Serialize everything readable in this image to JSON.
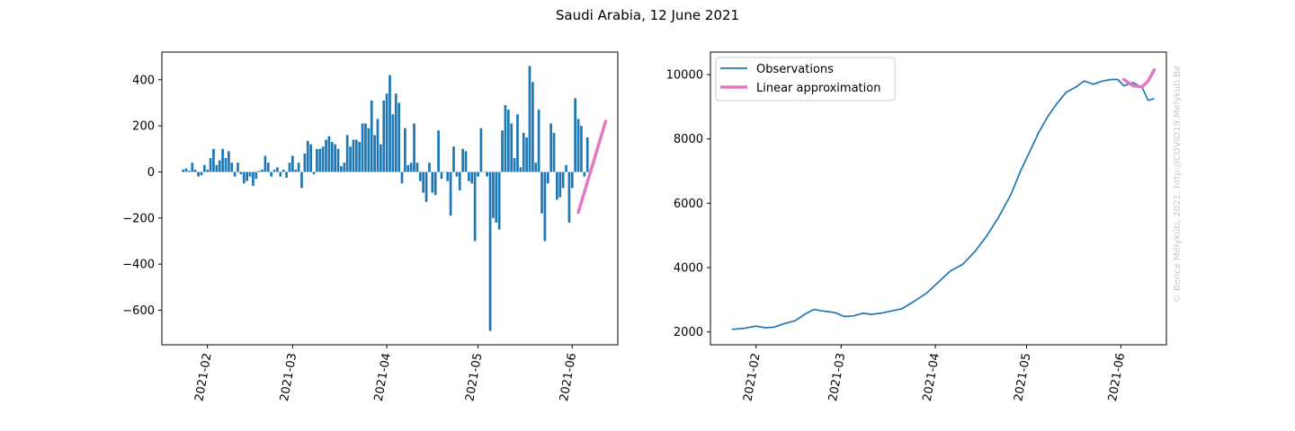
{
  "figure": {
    "title": "Saudi Arabia, 12 June 2021",
    "watermark": "© Bence Mélykúti, 2021. http://COVID19.Melykuti.Be"
  },
  "colors": {
    "bars": "#1f77b4",
    "observations": "#1f77b4",
    "linear": "#e377c2"
  },
  "chart_data": [
    {
      "type": "bar",
      "x_start": "2021-01-24",
      "x_end": "2021-06-12",
      "xlim": [
        "2021-01-17",
        "2021-06-16"
      ],
      "ylim": [
        -750,
        520
      ],
      "x_ticks": [
        "2021-02",
        "2021-03",
        "2021-04",
        "2021-05",
        "2021-06"
      ],
      "y_ticks": [
        -600,
        -400,
        -200,
        0,
        200,
        400
      ],
      "y_tick_labels": [
        "−600",
        "−400",
        "−200",
        "0",
        "200",
        "400"
      ],
      "values": [
        10,
        15,
        5,
        40,
        10,
        -20,
        -15,
        30,
        10,
        60,
        100,
        30,
        50,
        100,
        60,
        90,
        40,
        -20,
        40,
        -10,
        -50,
        -40,
        -20,
        -60,
        -30,
        5,
        10,
        70,
        40,
        -20,
        10,
        20,
        -20,
        10,
        -25,
        40,
        70,
        10,
        40,
        -70,
        80,
        135,
        120,
        -10,
        100,
        100,
        110,
        140,
        155,
        130,
        120,
        100,
        25,
        40,
        160,
        110,
        140,
        140,
        130,
        210,
        210,
        190,
        310,
        160,
        230,
        120,
        310,
        340,
        420,
        250,
        340,
        300,
        -50,
        190,
        30,
        40,
        210,
        40,
        -40,
        -90,
        -130,
        40,
        -90,
        -100,
        180,
        -30,
        0,
        -40,
        -190,
        110,
        -20,
        -80,
        100,
        90,
        -40,
        -50,
        -300,
        -20,
        190,
        0,
        -20,
        -690,
        -200,
        -220,
        -250,
        180,
        290,
        270,
        210,
        60,
        250,
        20,
        170,
        150,
        460,
        390,
        40,
        270,
        -180,
        -300,
        -50,
        210,
        170,
        -120,
        -110,
        -70,
        30,
        -220,
        -70,
        320,
        230,
        200,
        -20,
        150
      ],
      "linear_fit": {
        "x": [
          "2021-06-03",
          "2021-06-12"
        ],
        "y": [
          -175,
          220
        ]
      }
    },
    {
      "type": "line",
      "xlim": [
        "2021-01-17",
        "2021-06-16"
      ],
      "ylim": [
        1600,
        10700
      ],
      "x_ticks": [
        "2021-02",
        "2021-03",
        "2021-04",
        "2021-05",
        "2021-06"
      ],
      "y_ticks": [
        2000,
        4000,
        6000,
        8000,
        10000
      ],
      "series": [
        {
          "name": "Observations",
          "points": [
            [
              "2021-01-24",
              2080
            ],
            [
              "2021-01-28",
              2110
            ],
            [
              "2021-02-01",
              2180
            ],
            [
              "2021-02-04",
              2130
            ],
            [
              "2021-02-07",
              2150
            ],
            [
              "2021-02-10",
              2250
            ],
            [
              "2021-02-14",
              2350
            ],
            [
              "2021-02-17",
              2550
            ],
            [
              "2021-02-20",
              2700
            ],
            [
              "2021-02-23",
              2650
            ],
            [
              "2021-02-27",
              2600
            ],
            [
              "2021-03-02",
              2480
            ],
            [
              "2021-03-05",
              2500
            ],
            [
              "2021-03-08",
              2580
            ],
            [
              "2021-03-11",
              2550
            ],
            [
              "2021-03-14",
              2580
            ],
            [
              "2021-03-17",
              2640
            ],
            [
              "2021-03-19",
              2680
            ],
            [
              "2021-03-21",
              2720
            ],
            [
              "2021-03-25",
              2950
            ],
            [
              "2021-03-29",
              3200
            ],
            [
              "2021-04-02",
              3550
            ],
            [
              "2021-04-06",
              3900
            ],
            [
              "2021-04-10",
              4100
            ],
            [
              "2021-04-14",
              4500
            ],
            [
              "2021-04-18",
              5000
            ],
            [
              "2021-04-22",
              5600
            ],
            [
              "2021-04-26",
              6300
            ],
            [
              "2021-04-29",
              7000
            ],
            [
              "2021-05-02",
              7600
            ],
            [
              "2021-05-05",
              8200
            ],
            [
              "2021-05-08",
              8700
            ],
            [
              "2021-05-11",
              9100
            ],
            [
              "2021-05-14",
              9450
            ],
            [
              "2021-05-17",
              9600
            ],
            [
              "2021-05-20",
              9800
            ],
            [
              "2021-05-23",
              9700
            ],
            [
              "2021-05-26",
              9800
            ],
            [
              "2021-05-29",
              9850
            ],
            [
              "2021-05-31",
              9850
            ],
            [
              "2021-06-02",
              9650
            ],
            [
              "2021-06-05",
              9750
            ],
            [
              "2021-06-08",
              9600
            ],
            [
              "2021-06-10",
              9200
            ],
            [
              "2021-06-12",
              9250
            ]
          ],
          "points_note": "",
          "line_width": "thin"
        },
        {
          "name": "Linear approximation",
          "points": [
            [
              "2021-06-02",
              9850
            ],
            [
              "2021-06-05",
              9650
            ],
            [
              "2021-06-08",
              9620
            ],
            [
              "2021-06-10",
              9800
            ],
            [
              "2021-06-12",
              10150
            ]
          ]
        }
      ],
      "legend": {
        "position": "top-left",
        "entries": [
          "Observations",
          "Linear approximation"
        ]
      }
    }
  ]
}
